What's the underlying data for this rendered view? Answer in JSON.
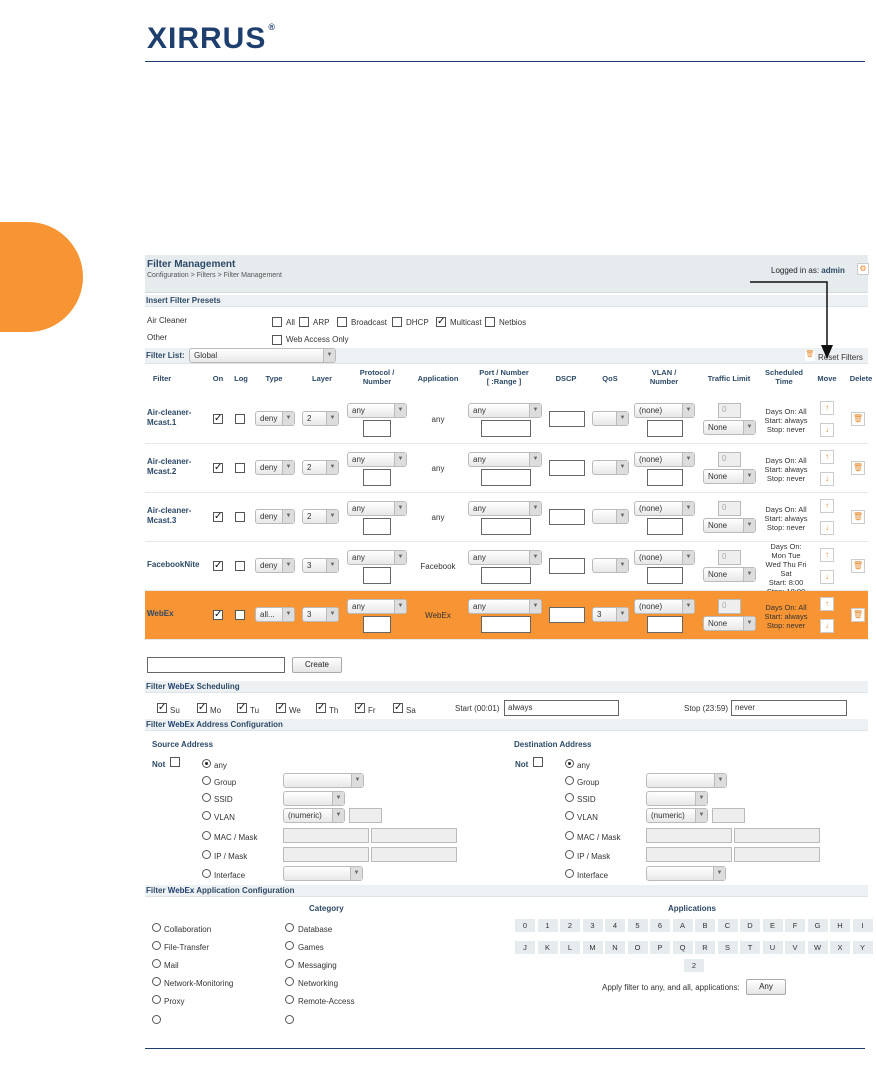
{
  "brand": {
    "logo_text": "XIRRUS",
    "reg": "®"
  },
  "ui": {
    "title": "Filter Management",
    "breadcrumb": "Configuration > Filters > Filter Management",
    "logged_in_label": "Logged in as:",
    "user": "admin",
    "presets": {
      "title": "Insert Filter Presets",
      "air_cleaner_label": "Air Cleaner",
      "other_label": "Other",
      "options": [
        {
          "label": "All",
          "checked": false
        },
        {
          "label": "ARP",
          "checked": false
        },
        {
          "label": "Broadcast",
          "checked": false
        },
        {
          "label": "DHCP",
          "checked": false
        },
        {
          "label": "Multicast",
          "checked": true
        },
        {
          "label": "Netbios",
          "checked": false
        }
      ],
      "web_access": "Web Access Only"
    },
    "filter_list_label": "Filter List:",
    "filter_list_value": "Global",
    "reset_filters": "Reset Filters",
    "columns": {
      "filter": "Filter",
      "on": "On",
      "log": "Log",
      "type": "Type",
      "layer": "Layer",
      "protocol": [
        "Protocol /",
        "Number"
      ],
      "application": "Application",
      "port": [
        "Port / Number",
        "[ :Range ]"
      ],
      "dscp": "DSCP",
      "qos": "QoS",
      "vlan": [
        "VLAN /",
        "Number"
      ],
      "traffic": "Traffic Limit",
      "scheduled": [
        "Scheduled",
        "Time"
      ],
      "move": "Move",
      "delete": "Delete"
    },
    "rows": [
      {
        "name": [
          "Air-cleaner-",
          "Mcast.1"
        ],
        "type": "deny",
        "layer": "2",
        "protocol": "any",
        "app": "any",
        "port": "any",
        "qos": "",
        "vlan": "(none)",
        "traffic": "0",
        "limit": "None",
        "sched": [
          "Days On: All",
          "Start: always",
          "Stop: never"
        ]
      },
      {
        "name": [
          "Air-cleaner-",
          "Mcast.2"
        ],
        "type": "deny",
        "layer": "2",
        "protocol": "any",
        "app": "any",
        "port": "any",
        "qos": "",
        "vlan": "(none)",
        "traffic": "0",
        "limit": "None",
        "sched": [
          "Days On: All",
          "Start: always",
          "Stop: never"
        ]
      },
      {
        "name": [
          "Air-cleaner-",
          "Mcast.3"
        ],
        "type": "deny",
        "layer": "2",
        "protocol": "any",
        "app": "any",
        "port": "any",
        "qos": "",
        "vlan": "(none)",
        "traffic": "0",
        "limit": "None",
        "sched": [
          "Days On: All",
          "Start: always",
          "Stop: never"
        ]
      },
      {
        "name": [
          "FacebookNite",
          ""
        ],
        "type": "deny",
        "layer": "3",
        "protocol": "any",
        "app": "Facebook",
        "port": "any",
        "qos": "",
        "vlan": "(none)",
        "traffic": "0",
        "limit": "None",
        "sched": [
          "Days On:",
          "Mon Tue",
          "Wed Thu Fri",
          "Sat",
          "Start: 8:00",
          "Stop: 18:00"
        ]
      },
      {
        "name": [
          "WebEx",
          ""
        ],
        "type": "all...",
        "layer": "3",
        "protocol": "any",
        "app": "WebEx",
        "port": "any",
        "qos": "3",
        "vlan": "(none)",
        "traffic": "0",
        "limit": "None",
        "sched": [
          "Days On: All",
          "Start: always",
          "Stop: never"
        ]
      }
    ],
    "create_label": "Create",
    "sched": {
      "title_pre": "Filter",
      "name": "WebEx",
      "title_post": "Scheduling",
      "days": [
        "Su",
        "Mo",
        "Tu",
        "We",
        "Th",
        "Fr",
        "Sa"
      ],
      "start_label": "Start (00:01)",
      "start_value": "always",
      "stop_label": "Stop (23:59)",
      "stop_value": "never"
    },
    "addr": {
      "title_post": "Address Configuration",
      "source": "Source Address",
      "dest": "Destination Address",
      "not": "Not",
      "options": [
        "any",
        "Group",
        "SSID",
        "VLAN",
        "MAC / Mask",
        "IP / Mask",
        "Interface"
      ],
      "vlan_ph": "(numeric)"
    },
    "app": {
      "title_post": "Application Configuration",
      "category": "Category",
      "applications": "Applications",
      "cats_left": [
        "Collaboration",
        "File-Transfer",
        "Mail",
        "Network-Monitoring",
        "Proxy"
      ],
      "cats_right": [
        "Database",
        "Games",
        "Messaging",
        "Networking",
        "Remote-Access"
      ],
      "keys1": [
        "0",
        "1",
        "2",
        "3",
        "4",
        "5",
        "6",
        "A",
        "B",
        "C",
        "D",
        "E",
        "F",
        "G",
        "H",
        "I"
      ],
      "keys2": [
        "J",
        "K",
        "L",
        "M",
        "N",
        "O",
        "P",
        "Q",
        "R",
        "S",
        "T",
        "U",
        "V",
        "W",
        "X",
        "Y"
      ],
      "key3": "2",
      "apply_text": "Apply filter to any, and all, applications:",
      "any_btn": "Any"
    }
  }
}
